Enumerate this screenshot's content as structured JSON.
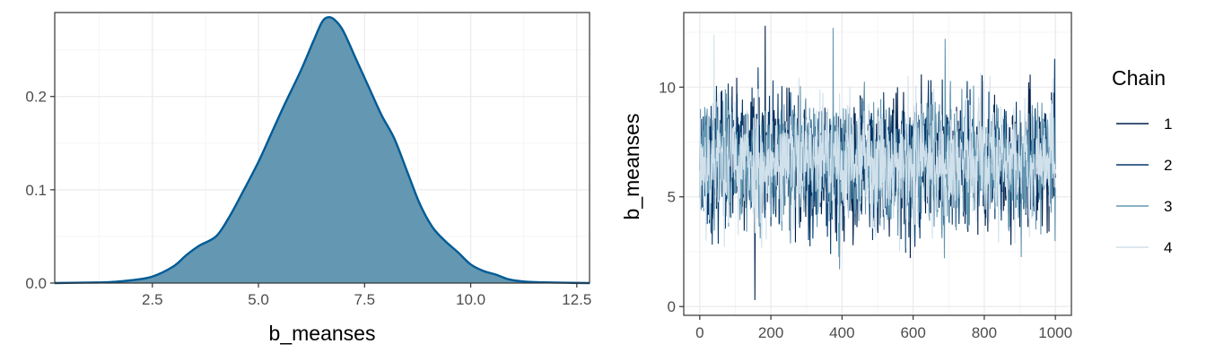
{
  "colors": {
    "density_fill": "#6497b1",
    "density_line": "#005b96",
    "chain_1": "#011f4b",
    "chain_2": "#03396c",
    "chain_3": "#6497b1",
    "chain_4": "#d1e1ec",
    "grid_major": "#ebebeb",
    "grid_minor": "#f5f5f5",
    "panel_border": "#333333"
  },
  "chart_data": [
    {
      "type": "area",
      "subtype": "density",
      "title": "",
      "xlabel": "b_meanses",
      "ylabel": "",
      "xlim": [
        0.2,
        12.8
      ],
      "ylim": [
        0,
        0.29
      ],
      "x_ticks": [
        2.5,
        5.0,
        7.5,
        10.0,
        12.5
      ],
      "x_tick_labels": [
        "2.5",
        "5.0",
        "7.5",
        "10.0",
        "12.5"
      ],
      "y_ticks": [
        0.0,
        0.1,
        0.2
      ],
      "y_tick_labels": [
        "0.0",
        "0.1",
        "0.2"
      ],
      "grid": true,
      "points": [
        [
          0.2,
          0.0
        ],
        [
          1.0,
          0.0005
        ],
        [
          1.5,
          0.001
        ],
        [
          2.0,
          0.003
        ],
        [
          2.5,
          0.007
        ],
        [
          3.0,
          0.018
        ],
        [
          3.3,
          0.03
        ],
        [
          3.6,
          0.04
        ],
        [
          4.0,
          0.05
        ],
        [
          4.3,
          0.07
        ],
        [
          4.6,
          0.095
        ],
        [
          5.0,
          0.13
        ],
        [
          5.3,
          0.16
        ],
        [
          5.6,
          0.19
        ],
        [
          6.0,
          0.228
        ],
        [
          6.3,
          0.26
        ],
        [
          6.5,
          0.28
        ],
        [
          6.65,
          0.285
        ],
        [
          6.8,
          0.282
        ],
        [
          7.0,
          0.27
        ],
        [
          7.3,
          0.24
        ],
        [
          7.6,
          0.21
        ],
        [
          7.9,
          0.18
        ],
        [
          8.2,
          0.155
        ],
        [
          8.5,
          0.12
        ],
        [
          8.8,
          0.085
        ],
        [
          9.1,
          0.06
        ],
        [
          9.4,
          0.045
        ],
        [
          9.7,
          0.033
        ],
        [
          10.0,
          0.02
        ],
        [
          10.3,
          0.013
        ],
        [
          10.6,
          0.009
        ],
        [
          10.9,
          0.004
        ],
        [
          11.3,
          0.0015
        ],
        [
          12.0,
          0.0005
        ],
        [
          12.8,
          0.0
        ]
      ]
    },
    {
      "type": "line",
      "subtype": "trace",
      "title": "",
      "xlabel": "",
      "ylabel": "b_meanses",
      "xlim": [
        -45,
        1045
      ],
      "ylim": [
        -0.4,
        13.4
      ],
      "x_ticks": [
        0,
        200,
        400,
        600,
        800,
        1000
      ],
      "x_tick_labels": [
        "0",
        "200",
        "400",
        "600",
        "800",
        "1000"
      ],
      "y_ticks": [
        0,
        5,
        10
      ],
      "y_tick_labels": [
        "0",
        "5",
        "10"
      ],
      "grid": true,
      "legend": {
        "title": "Chain",
        "position": "right",
        "entries": [
          "1",
          "2",
          "3",
          "4"
        ]
      },
      "iterations": [
        1,
        1000
      ],
      "series_summary": {
        "mean": 6.6,
        "sd": 1.4,
        "min": 0.3,
        "max": 12.8
      },
      "series": [
        {
          "label": "1",
          "seed": 11,
          "spikes": [
            [
              184,
              12.8
            ],
            [
              155,
              0.3
            ]
          ]
        },
        {
          "label": "2",
          "seed": 23,
          "spikes": []
        },
        {
          "label": "3",
          "seed": 37,
          "spikes": [
            [
              375,
              12.7
            ],
            [
              393,
              1.7
            ],
            [
              690,
              12.2
            ]
          ]
        },
        {
          "label": "4",
          "seed": 53,
          "spikes": [
            [
              40,
              12.4
            ]
          ]
        }
      ]
    }
  ]
}
